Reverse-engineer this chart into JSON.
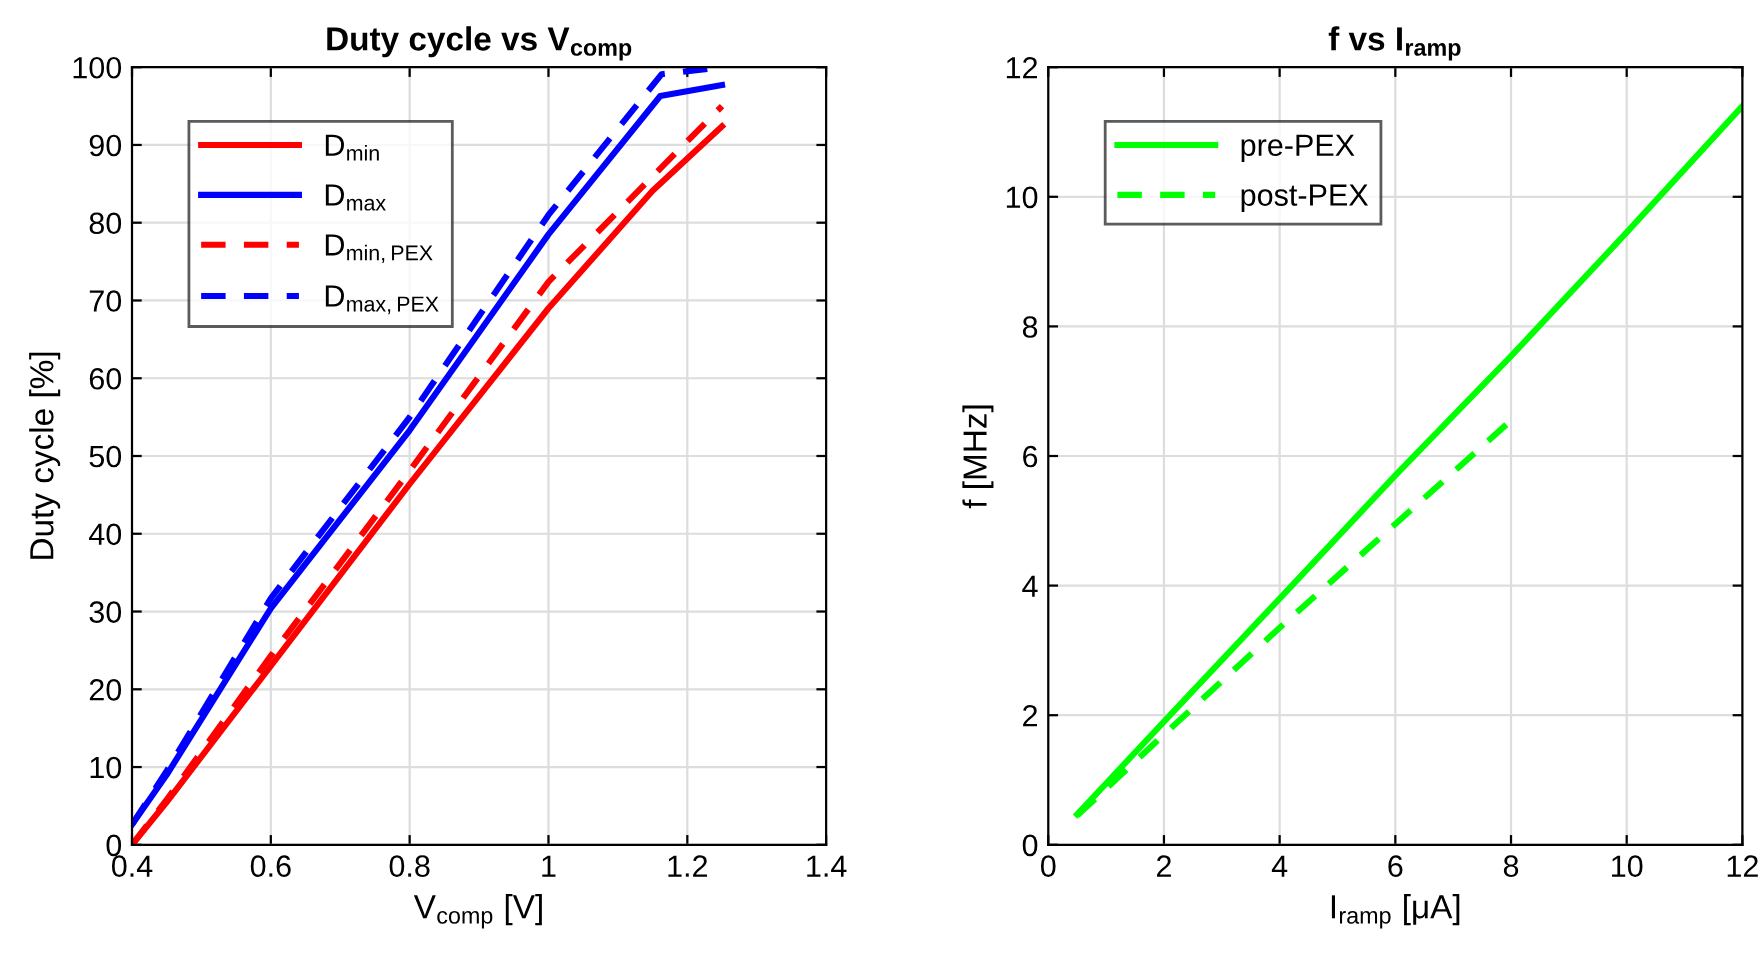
{
  "chart_data": [
    {
      "type": "line",
      "title": "Duty cycle vs V$_{comp}$",
      "xlabel": "V$_{comp}$ [V]",
      "ylabel": "Duty cycle [%]",
      "xlim": [
        0.4,
        1.4
      ],
      "xticks": [
        0.4,
        0.6,
        0.8,
        1,
        1.2,
        1.4
      ],
      "ylim": [
        0,
        100
      ],
      "yticks": [
        0,
        10,
        20,
        30,
        40,
        50,
        60,
        70,
        80,
        90,
        100
      ],
      "grid": true,
      "legend": "top left",
      "marker": "none",
      "series": [
        {
          "name": "D$_{min}$",
          "color": "#ff0000",
          "line_style": "solid",
          "x": [
            0.4,
            0.45,
            0.6,
            0.8,
            1.0,
            1.15,
            1.25
          ],
          "values": [
            0,
            5.5,
            23,
            46.4,
            69,
            84.1,
            92.4
          ]
        },
        {
          "name": "D$_{max}$",
          "color": "#0000ff",
          "line_style": "solid",
          "x": [
            0.4,
            0.45,
            0.6,
            0.8,
            1.0,
            1.161,
            1.25
          ],
          "values": [
            2.6,
            9,
            30.4,
            53.3,
            78.5,
            96.3,
            97.7
          ]
        },
        {
          "name": "D$_{min,PEX}$",
          "color": "#ff0000",
          "line_style": "dashed",
          "x": [
            0.4,
            0.45,
            0.6,
            0.8,
            1.0,
            1.25
          ],
          "values": [
            0,
            5.8,
            24.3,
            48.1,
            72.4,
            95
          ]
        },
        {
          "name": "D$_{max,PEX}$",
          "color": "#0000ff",
          "line_style": "dashed",
          "x": [
            0.4,
            0.45,
            0.6,
            0.8,
            1.0,
            1.163,
            1.25
          ],
          "values": [
            2.6,
            9.5,
            31.7,
            55,
            81,
            99.1,
            100
          ]
        }
      ]
    },
    {
      "type": "line",
      "title": "f vs I$_{ramp}$",
      "xlabel": "I$_{ramp}$ [μA]",
      "ylabel": "f [MHz]",
      "xlim": [
        0,
        12
      ],
      "xticks": [
        0,
        2,
        4,
        6,
        8,
        10,
        12
      ],
      "ylim": [
        0,
        12
      ],
      "yticks": [
        0,
        2,
        4,
        6,
        8,
        10,
        12
      ],
      "grid": true,
      "legend": "top left",
      "marker": "none",
      "series": [
        {
          "name": "pre-PEX",
          "color": "#00ff00",
          "line_style": "solid",
          "x": [
            0.5,
            2,
            4,
            6,
            8,
            10,
            12
          ],
          "values": [
            0.47,
            1.9,
            3.8,
            5.7,
            7.54,
            9.45,
            11.4
          ]
        },
        {
          "name": "post-PEX",
          "color": "#00ff00",
          "line_style": "dashed",
          "x": [
            0.5,
            2,
            4,
            6,
            8
          ],
          "values": [
            0.45,
            1.7,
            3.35,
            4.95,
            6.55
          ]
        }
      ]
    }
  ]
}
